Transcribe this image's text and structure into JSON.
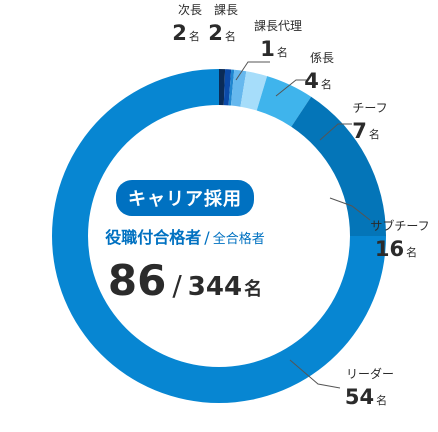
{
  "chart_data": {
    "type": "pie",
    "unit": "名",
    "slices": [
      {
        "label": "次長",
        "value": 2,
        "color": "#0a2b57"
      },
      {
        "label": "課長",
        "value": 2,
        "color": "#0b4aa8"
      },
      {
        "label": "課長代理",
        "value": 1,
        "color": "#1f86d0"
      },
      {
        "label": "係長",
        "value": 4,
        "color": "#66b8ee"
      },
      {
        "label": "チーフ",
        "value": 7,
        "color": "#a6ddfa"
      },
      {
        "label": "サブチーフ",
        "value": 16,
        "color": "#3fb4ec"
      },
      {
        "label": "リーダー",
        "value": 54,
        "color": "#0475b8"
      },
      {
        "label": "",
        "value": 258,
        "color": "#0786d2"
      }
    ]
  },
  "center": {
    "badge": "キャリア採用",
    "line_main": "役職付合格者",
    "line_sep": "/",
    "line_all": "全合格者",
    "count": "86",
    "count_sep": "/",
    "total": "344",
    "unit": "名"
  }
}
